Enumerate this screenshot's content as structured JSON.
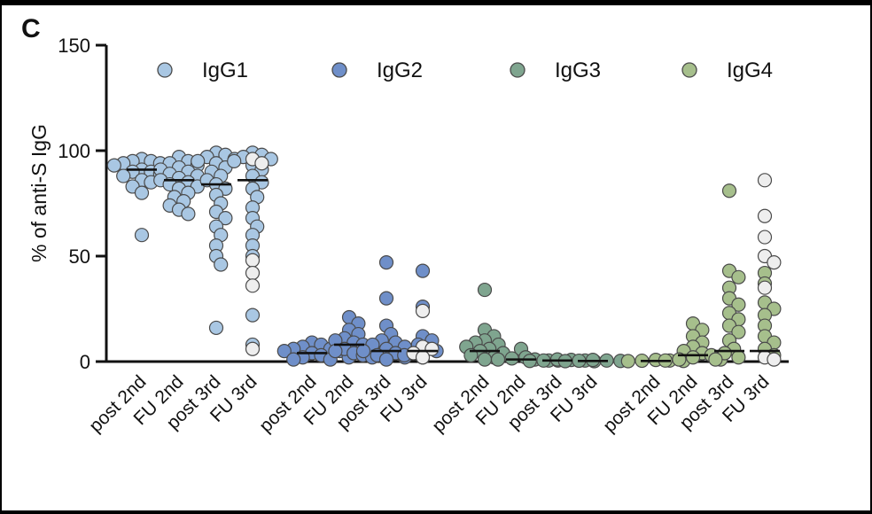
{
  "panel_label": "C",
  "chart_data": {
    "type": "scatter",
    "ylabel": "% of anti-S IgG",
    "ylim": [
      0,
      150
    ],
    "yticks": [
      0,
      50,
      100,
      150
    ],
    "grid": false,
    "legend_placement": "top",
    "legend": [
      {
        "label": "IgG1",
        "color": "#a9c7e3"
      },
      {
        "label": "IgG2",
        "color": "#6f8fc9"
      },
      {
        "label": "IgG3",
        "color": "#7fa58f"
      },
      {
        "label": "IgG4",
        "color": "#a6bf8c"
      }
    ],
    "highlight_color": "#eeeeee",
    "groups": [
      {
        "series": "IgG1",
        "categories": [
          {
            "label": "post 2nd",
            "median": 91,
            "values": [
              96,
              95,
              95,
              94,
              94,
              93,
              93,
              92,
              92,
              91,
              91,
              90,
              90,
              89,
              88,
              87,
              86,
              85,
              83,
              80,
              60
            ],
            "light": []
          },
          {
            "label": "FU 2nd",
            "median": 86,
            "values": [
              97,
              95,
              94,
              93,
              92,
              91,
              90,
              89,
              88,
              87,
              86,
              85,
              84,
              83,
              82,
              80,
              78,
              76,
              74,
              72,
              70
            ],
            "light": []
          },
          {
            "label": "post 3rd",
            "median": 84,
            "values": [
              99,
              98,
              97,
              96,
              95,
              94,
              92,
              90,
              88,
              86,
              84,
              82,
              79,
              75,
              71,
              68,
              64,
              60,
              55,
              50,
              46,
              16
            ],
            "light": []
          },
          {
            "label": "FU 3rd",
            "median": 86,
            "values": [
              99,
              98,
              97,
              96,
              95,
              93,
              91,
              88,
              85,
              82,
              78,
              73,
              68,
              64,
              60,
              55,
              50,
              22,
              8
            ],
            "light": [
              96,
              94,
              48,
              42,
              36,
              6
            ]
          }
        ]
      },
      {
        "series": "IgG2",
        "categories": [
          {
            "label": "post 2nd",
            "median": 4,
            "values": [
              9,
              8,
              7,
              6,
              6,
              5,
              5,
              4,
              4,
              3,
              3,
              2,
              2,
              1,
              1
            ],
            "light": []
          },
          {
            "label": "FU 2nd",
            "median": 8,
            "values": [
              21,
              18,
              15,
              13,
              11,
              10,
              9,
              8,
              7,
              6,
              5,
              4,
              3,
              2
            ],
            "light": []
          },
          {
            "label": "post 3rd",
            "median": 5,
            "values": [
              47,
              30,
              17,
              13,
              10,
              9,
              8,
              7,
              6,
              5,
              4,
              3,
              2,
              1
            ],
            "light": []
          },
          {
            "label": "FU 3rd",
            "median": 5,
            "values": [
              43,
              26,
              12,
              10,
              8,
              6,
              5,
              4,
              3,
              2
            ],
            "light": [
              24,
              7,
              6,
              4,
              2
            ]
          }
        ]
      },
      {
        "series": "IgG3",
        "categories": [
          {
            "label": "post 2nd",
            "median": 5,
            "values": [
              34,
              15,
              12,
              10,
              9,
              8,
              7,
              6,
              5,
              4,
              3,
              2,
              1
            ],
            "light": []
          },
          {
            "label": "FU 2nd",
            "median": 1,
            "values": [
              6,
              2,
              1.5,
              1,
              1,
              0.5,
              0.5
            ],
            "light": []
          },
          {
            "label": "post 3rd",
            "median": 0.5,
            "values": [
              1,
              0.8,
              0.5,
              0.5,
              0.3,
              0.2
            ],
            "light": []
          },
          {
            "label": "FU 3rd",
            "median": 0.3,
            "values": [
              0.8,
              0.5,
              0.4,
              0.3,
              0.2
            ],
            "light": []
          }
        ]
      },
      {
        "series": "IgG4",
        "categories": [
          {
            "label": "post 2nd",
            "median": 0.3,
            "values": [
              0.8,
              0.5,
              0.4,
              0.3,
              0.2
            ],
            "light": []
          },
          {
            "label": "FU 2nd",
            "median": 3,
            "values": [
              18,
              15,
              12,
              9,
              7,
              5,
              4,
              3,
              2,
              1,
              1,
              0.5
            ],
            "light": []
          },
          {
            "label": "post 3rd",
            "median": 5,
            "values": [
              81,
              43,
              40,
              35,
              30,
              27,
              23,
              20,
              17,
              14,
              10,
              6,
              4,
              2,
              1
            ],
            "light": []
          },
          {
            "label": "FU 3rd",
            "median": 5,
            "values": [
              42,
              37,
              28,
              25,
              22,
              17,
              12,
              9,
              6,
              3
            ],
            "light": [
              86,
              69,
              59,
              50,
              47,
              35,
              2,
              1
            ]
          }
        ]
      }
    ]
  }
}
